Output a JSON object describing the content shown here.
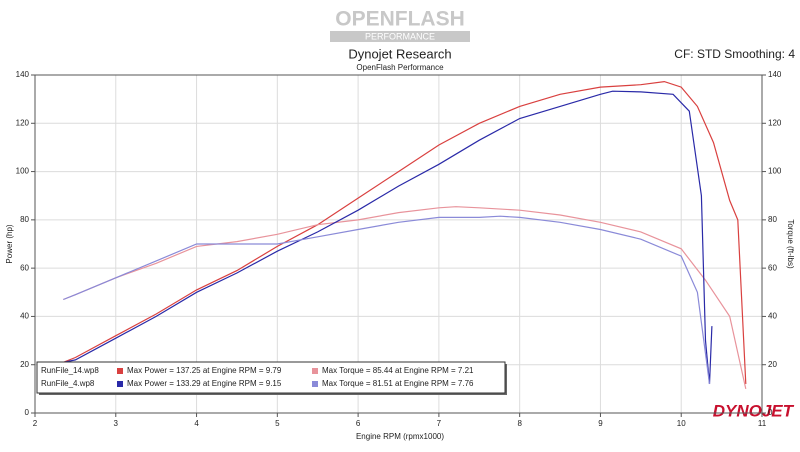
{
  "chart_data": {
    "type": "line",
    "logo": "OPENFLASH",
    "logo_sub": "PERFORMANCE",
    "title": "Dynojet Research",
    "subtitle": "OpenFlash Performance",
    "note": "CF: STD Smoothing: 4",
    "x_label": "Engine RPM (rpmx1000)",
    "y_label": "Power (hp)",
    "y2_label": "Torque (ft-lbs)",
    "brand": "DYNOJET",
    "runs": [
      "RunFile_14.wp8",
      "RunFile_4.wp8"
    ],
    "xlim": [
      2,
      11
    ],
    "xticks": [
      2,
      3,
      4,
      5,
      6,
      7,
      8,
      9,
      10,
      11
    ],
    "ylim": [
      0,
      140
    ],
    "yticks": [
      0,
      20,
      40,
      60,
      80,
      100,
      120,
      140
    ],
    "y2lim": [
      0,
      140
    ],
    "y2ticks": [
      0,
      20,
      40,
      60,
      80,
      100,
      120,
      140
    ],
    "grid": true,
    "series": [
      {
        "name": "Max Power = 137.25 at Engine RPM = 9.79",
        "run": 0,
        "color": "#d9403f",
        "x": [
          2.35,
          2.5,
          3,
          3.5,
          4,
          4.5,
          5,
          5.5,
          6,
          6.5,
          7,
          7.5,
          8,
          8.5,
          9,
          9.5,
          9.79,
          10,
          10.2,
          10.4,
          10.6,
          10.7,
          10.8
        ],
        "values": [
          21,
          23,
          32,
          41,
          51,
          59,
          69,
          78,
          89,
          100,
          111,
          120,
          127,
          132,
          135,
          136,
          137.25,
          135,
          127,
          112,
          88,
          80,
          12
        ]
      },
      {
        "name": "Max Torque = 85.44 at Engine RPM = 7.21",
        "run": 0,
        "color": "#e8939b",
        "axis": "y2",
        "x": [
          2.35,
          2.5,
          3,
          3.5,
          4,
          4.5,
          5,
          5.5,
          6,
          6.5,
          7,
          7.21,
          7.5,
          8,
          8.5,
          9,
          9.5,
          10,
          10.3,
          10.6,
          10.8
        ],
        "values": [
          47,
          49,
          56,
          62,
          69,
          71,
          74,
          78,
          80,
          83,
          85,
          85.44,
          85,
          84,
          82,
          79,
          75,
          68,
          55,
          40,
          10
        ]
      },
      {
        "name": "Max Power = 133.29 at Engine RPM = 9.15",
        "run": 1,
        "color": "#2a2aa8",
        "x": [
          2.35,
          2.5,
          3,
          3.5,
          4,
          4.5,
          5,
          5.5,
          6,
          6.5,
          7,
          7.5,
          8,
          8.5,
          9,
          9.15,
          9.5,
          9.9,
          10.1,
          10.25,
          10.3,
          10.35,
          10.38
        ],
        "values": [
          21,
          22,
          31,
          40,
          50,
          58,
          67,
          75,
          84,
          94,
          103,
          113,
          122,
          127,
          132,
          133.29,
          133,
          132,
          125,
          90,
          30,
          12,
          36
        ]
      },
      {
        "name": "Max Torque = 81.51 at Engine RPM = 7.76",
        "run": 1,
        "color": "#8a8ad8",
        "axis": "y2",
        "x": [
          2.35,
          2.5,
          3,
          3.5,
          4,
          4.5,
          5,
          5.5,
          6,
          6.5,
          7,
          7.5,
          7.76,
          8,
          8.5,
          9,
          9.5,
          10,
          10.2,
          10.35
        ],
        "values": [
          47,
          49,
          56,
          63,
          70,
          70,
          70,
          73,
          76,
          79,
          81,
          81,
          81.51,
          81,
          79,
          76,
          72,
          65,
          50,
          12
        ]
      }
    ]
  }
}
